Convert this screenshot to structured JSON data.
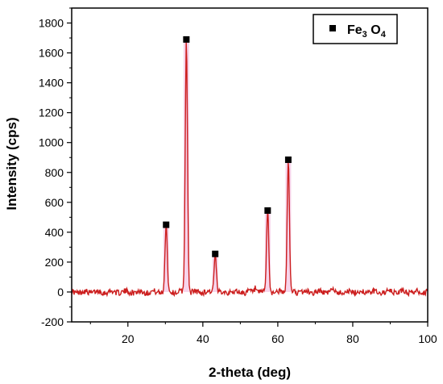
{
  "chart_data": {
    "type": "line",
    "xlabel": "2-theta (deg)",
    "ylabel": "Intensity (cps)",
    "xlim": [
      5,
      100
    ],
    "ylim": [
      -200,
      1900
    ],
    "x_ticks": [
      "20",
      "40",
      "60",
      "80",
      "100"
    ],
    "y_ticks": [
      "-200",
      "0",
      "200",
      "400",
      "600",
      "800",
      "1000",
      "1200",
      "1400",
      "1600",
      "1800"
    ],
    "legend": {
      "placement": "top-right",
      "label_main": "Fe",
      "label_sub1": "3",
      "label_mid": " O",
      "label_sub2": "4"
    },
    "series": [
      {
        "line_color": "#cc1f1f",
        "fill_color": "#f4c6e4",
        "peaks": [
          {
            "x": 30.2,
            "y": 450
          },
          {
            "x": 35.6,
            "y": 1690
          },
          {
            "x": 43.3,
            "y": 255
          },
          {
            "x": 57.3,
            "y": 545
          },
          {
            "x": 62.8,
            "y": 885
          }
        ]
      }
    ],
    "markers": [
      {
        "x": 30.2,
        "y": 450
      },
      {
        "x": 35.6,
        "y": 1690
      },
      {
        "x": 43.3,
        "y": 255
      },
      {
        "x": 57.3,
        "y": 545
      },
      {
        "x": 62.8,
        "y": 885
      }
    ],
    "marker_color": "#000000"
  }
}
